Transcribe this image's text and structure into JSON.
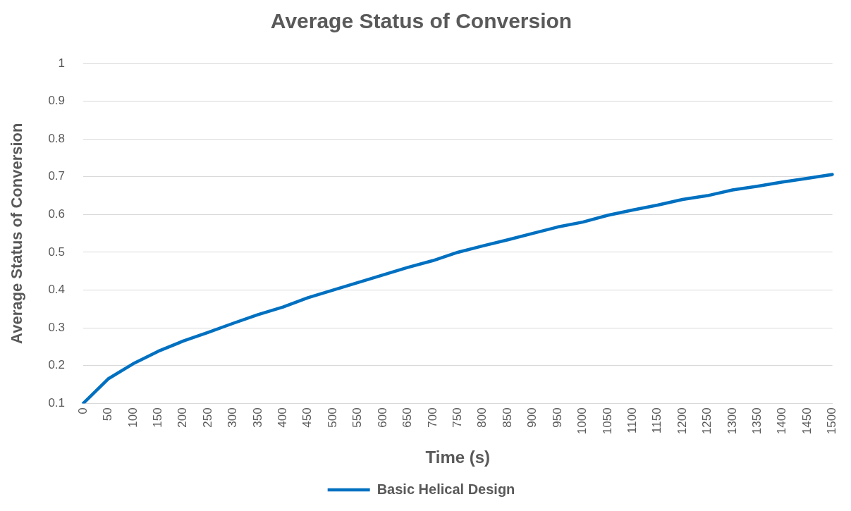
{
  "chart_data": {
    "type": "line",
    "title": "Average Status of Conversion",
    "xlabel": "Time (s)",
    "ylabel": "Average Status of Conversion",
    "categories": [
      "0",
      "50",
      "100",
      "150",
      "200",
      "250",
      "300",
      "350",
      "400",
      "450",
      "500",
      "550",
      "600",
      "650",
      "700",
      "750",
      "800",
      "850",
      "900",
      "950",
      "1000",
      "1050",
      "1100",
      "1150",
      "1200",
      "1250",
      "1300",
      "1350",
      "1400",
      "1450",
      "1500"
    ],
    "series": [
      {
        "name": "Basic Helical Design",
        "color": "#0070c0",
        "values": [
          0.1,
          0.165,
          0.205,
          0.238,
          0.265,
          0.288,
          0.312,
          0.335,
          0.355,
          0.38,
          0.4,
          0.42,
          0.44,
          0.46,
          0.478,
          0.5,
          0.517,
          0.533,
          0.55,
          0.567,
          0.58,
          0.598,
          0.612,
          0.625,
          0.64,
          0.65,
          0.665,
          0.675,
          0.686,
          0.696,
          0.706
        ]
      }
    ],
    "ylim": [
      0.1,
      1
    ],
    "yticks": [
      0.1,
      0.2,
      0.3,
      0.4,
      0.5,
      0.6,
      0.7,
      0.8,
      0.9,
      1
    ],
    "grid": "y",
    "legend": "bottom",
    "marker": "none",
    "line_style": "solid"
  }
}
